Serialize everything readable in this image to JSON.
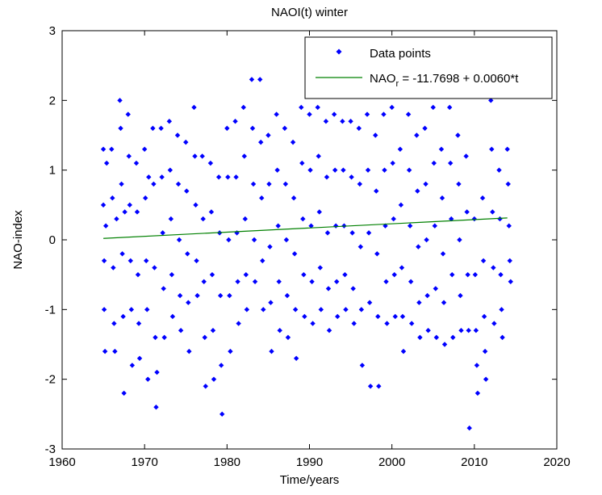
{
  "chart_data": {
    "type": "scatter",
    "title": "NAOI(t) winter",
    "xlabel": "Time/years",
    "ylabel": "NAO-index",
    "xlim": [
      1960,
      2020
    ],
    "ylim": [
      -3,
      3
    ],
    "xticks": [
      1960,
      1970,
      1980,
      1990,
      2000,
      2010,
      2020
    ],
    "yticks": [
      -3,
      -2,
      -1,
      0,
      1,
      2,
      3
    ],
    "grid": false,
    "legend": {
      "position": "top-right",
      "entries": [
        {
          "label": "Data points",
          "marker": "diamond",
          "color": "#0000ff"
        },
        {
          "label_main": "NAO",
          "label_sub": "r",
          "label_rest": " = -11.7698 + 0.0060*t",
          "line": true,
          "color": "#008000"
        }
      ]
    },
    "series": [
      {
        "name": "Data points",
        "color": "#0000ff",
        "points": [
          [
            1965.0,
            1.3
          ],
          [
            1965.0,
            0.5
          ],
          [
            1965.1,
            -0.3
          ],
          [
            1965.1,
            -1.0
          ],
          [
            1965.2,
            -1.6
          ],
          [
            1965.3,
            0.2
          ],
          [
            1965.4,
            1.1
          ],
          [
            1966.0,
            1.3
          ],
          [
            1966.1,
            0.6
          ],
          [
            1966.2,
            -0.4
          ],
          [
            1966.3,
            -1.2
          ],
          [
            1966.4,
            -1.6
          ],
          [
            1966.6,
            0.3
          ],
          [
            1967.0,
            2.0
          ],
          [
            1967.1,
            1.6
          ],
          [
            1967.2,
            0.8
          ],
          [
            1967.3,
            -0.2
          ],
          [
            1967.4,
            -1.1
          ],
          [
            1967.5,
            -2.2
          ],
          [
            1967.6,
            0.4
          ],
          [
            1968.0,
            1.8
          ],
          [
            1968.1,
            1.2
          ],
          [
            1968.2,
            0.5
          ],
          [
            1968.3,
            -0.3
          ],
          [
            1968.4,
            -1.0
          ],
          [
            1968.5,
            -1.8
          ],
          [
            1969.0,
            1.1
          ],
          [
            1969.1,
            0.4
          ],
          [
            1969.2,
            -0.5
          ],
          [
            1969.3,
            -1.2
          ],
          [
            1969.4,
            -1.7
          ],
          [
            1970.0,
            1.3
          ],
          [
            1970.1,
            0.6
          ],
          [
            1970.2,
            -0.3
          ],
          [
            1970.3,
            -1.0
          ],
          [
            1970.4,
            -2.0
          ],
          [
            1970.5,
            0.9
          ],
          [
            1971.0,
            1.6
          ],
          [
            1971.1,
            0.8
          ],
          [
            1971.2,
            -0.4
          ],
          [
            1971.3,
            -1.4
          ],
          [
            1971.4,
            -2.4
          ],
          [
            1971.5,
            -1.9
          ],
          [
            1972.0,
            1.6
          ],
          [
            1972.1,
            0.9
          ],
          [
            1972.2,
            0.1
          ],
          [
            1972.3,
            -0.7
          ],
          [
            1972.4,
            -1.4
          ],
          [
            1973.0,
            1.7
          ],
          [
            1973.1,
            1.0
          ],
          [
            1973.2,
            0.3
          ],
          [
            1973.3,
            -0.5
          ],
          [
            1973.4,
            -1.1
          ],
          [
            1974.0,
            1.5
          ],
          [
            1974.1,
            0.8
          ],
          [
            1974.2,
            0.0
          ],
          [
            1974.3,
            -0.8
          ],
          [
            1974.4,
            -1.3
          ],
          [
            1975.0,
            1.4
          ],
          [
            1975.1,
            0.7
          ],
          [
            1975.2,
            -0.2
          ],
          [
            1975.3,
            -0.9
          ],
          [
            1975.4,
            -1.6
          ],
          [
            1976.0,
            1.9
          ],
          [
            1976.1,
            1.2
          ],
          [
            1976.2,
            0.5
          ],
          [
            1976.3,
            -0.3
          ],
          [
            1976.4,
            -0.8
          ],
          [
            1977.0,
            1.2
          ],
          [
            1977.1,
            0.3
          ],
          [
            1977.2,
            -0.6
          ],
          [
            1977.3,
            -1.4
          ],
          [
            1977.4,
            -2.1
          ],
          [
            1978.0,
            1.1
          ],
          [
            1978.1,
            0.4
          ],
          [
            1978.2,
            -0.5
          ],
          [
            1978.3,
            -1.3
          ],
          [
            1978.4,
            -2.0
          ],
          [
            1979.0,
            0.9
          ],
          [
            1979.1,
            0.1
          ],
          [
            1979.2,
            -0.8
          ],
          [
            1979.3,
            -1.8
          ],
          [
            1979.4,
            -2.5
          ],
          [
            1980.0,
            1.6
          ],
          [
            1980.1,
            0.9
          ],
          [
            1980.2,
            0.0
          ],
          [
            1980.3,
            -0.8
          ],
          [
            1980.4,
            -1.6
          ],
          [
            1981.0,
            1.7
          ],
          [
            1981.1,
            0.9
          ],
          [
            1981.2,
            0.1
          ],
          [
            1981.3,
            -0.6
          ],
          [
            1981.4,
            -1.2
          ],
          [
            1982.0,
            1.9
          ],
          [
            1982.1,
            1.2
          ],
          [
            1982.2,
            0.3
          ],
          [
            1982.3,
            -0.5
          ],
          [
            1982.4,
            -1.0
          ],
          [
            1983.0,
            2.3
          ],
          [
            1983.1,
            1.6
          ],
          [
            1983.2,
            0.8
          ],
          [
            1983.3,
            0.0
          ],
          [
            1983.4,
            -0.6
          ],
          [
            1984.0,
            2.3
          ],
          [
            1984.1,
            1.4
          ],
          [
            1984.2,
            0.6
          ],
          [
            1984.3,
            -0.3
          ],
          [
            1984.4,
            -1.0
          ],
          [
            1985.0,
            1.5
          ],
          [
            1985.1,
            0.8
          ],
          [
            1985.2,
            -0.1
          ],
          [
            1985.3,
            -0.9
          ],
          [
            1985.4,
            -1.6
          ],
          [
            1986.0,
            1.8
          ],
          [
            1986.1,
            1.0
          ],
          [
            1986.2,
            0.2
          ],
          [
            1986.3,
            -0.6
          ],
          [
            1986.4,
            -1.3
          ],
          [
            1987.0,
            1.6
          ],
          [
            1987.1,
            0.8
          ],
          [
            1987.2,
            0.0
          ],
          [
            1987.3,
            -0.8
          ],
          [
            1987.4,
            -1.4
          ],
          [
            1988.0,
            1.4
          ],
          [
            1988.1,
            0.6
          ],
          [
            1988.2,
            -0.2
          ],
          [
            1988.3,
            -1.0
          ],
          [
            1988.4,
            -1.7
          ],
          [
            1989.0,
            1.9
          ],
          [
            1989.1,
            1.1
          ],
          [
            1989.2,
            0.3
          ],
          [
            1989.3,
            -0.5
          ],
          [
            1989.4,
            -1.1
          ],
          [
            1990.0,
            1.8
          ],
          [
            1990.1,
            1.0
          ],
          [
            1990.2,
            0.2
          ],
          [
            1990.3,
            -0.6
          ],
          [
            1990.4,
            -1.2
          ],
          [
            1991.0,
            1.9
          ],
          [
            1991.1,
            1.2
          ],
          [
            1991.2,
            0.4
          ],
          [
            1991.3,
            -0.4
          ],
          [
            1991.4,
            -1.0
          ],
          [
            1992.0,
            1.7
          ],
          [
            1992.1,
            0.9
          ],
          [
            1992.2,
            0.1
          ],
          [
            1992.3,
            -0.7
          ],
          [
            1992.4,
            -1.3
          ],
          [
            1993.0,
            1.8
          ],
          [
            1993.1,
            1.0
          ],
          [
            1993.2,
            0.2
          ],
          [
            1993.3,
            -0.6
          ],
          [
            1993.4,
            -1.1
          ],
          [
            1994.0,
            1.7
          ],
          [
            1994.1,
            1.0
          ],
          [
            1994.2,
            0.2
          ],
          [
            1994.3,
            -0.5
          ],
          [
            1994.4,
            -1.0
          ],
          [
            1995.0,
            1.7
          ],
          [
            1995.1,
            0.9
          ],
          [
            1995.2,
            0.1
          ],
          [
            1995.3,
            -0.7
          ],
          [
            1995.4,
            -1.2
          ],
          [
            1996.0,
            1.6
          ],
          [
            1996.1,
            0.8
          ],
          [
            1996.2,
            -0.1
          ],
          [
            1996.3,
            -1.0
          ],
          [
            1996.4,
            -1.8
          ],
          [
            1997.0,
            1.8
          ],
          [
            1997.1,
            1.0
          ],
          [
            1997.2,
            0.1
          ],
          [
            1997.3,
            -0.9
          ],
          [
            1997.4,
            -2.1
          ],
          [
            1998.0,
            1.5
          ],
          [
            1998.1,
            0.7
          ],
          [
            1998.2,
            -0.2
          ],
          [
            1998.3,
            -1.1
          ],
          [
            1998.4,
            -2.1
          ],
          [
            1999.0,
            1.8
          ],
          [
            1999.1,
            1.0
          ],
          [
            1999.2,
            0.2
          ],
          [
            1999.3,
            -0.6
          ],
          [
            1999.4,
            -1.2
          ],
          [
            2000.0,
            1.9
          ],
          [
            2000.1,
            1.1
          ],
          [
            2000.2,
            0.3
          ],
          [
            2000.3,
            -0.5
          ],
          [
            2000.4,
            -1.1
          ],
          [
            2001.0,
            1.3
          ],
          [
            2001.1,
            0.5
          ],
          [
            2001.2,
            -0.4
          ],
          [
            2001.3,
            -1.1
          ],
          [
            2001.4,
            -1.6
          ],
          [
            2002.0,
            1.8
          ],
          [
            2002.1,
            1.0
          ],
          [
            2002.2,
            0.2
          ],
          [
            2002.3,
            -0.6
          ],
          [
            2002.4,
            -1.2
          ],
          [
            2003.0,
            1.5
          ],
          [
            2003.1,
            0.7
          ],
          [
            2003.2,
            -0.1
          ],
          [
            2003.3,
            -0.9
          ],
          [
            2003.4,
            -1.4
          ],
          [
            2004.0,
            1.6
          ],
          [
            2004.1,
            0.8
          ],
          [
            2004.2,
            0.0
          ],
          [
            2004.3,
            -0.8
          ],
          [
            2004.4,
            -1.3
          ],
          [
            2005.0,
            1.9
          ],
          [
            2005.1,
            1.1
          ],
          [
            2005.2,
            0.2
          ],
          [
            2005.3,
            -0.7
          ],
          [
            2005.4,
            -1.4
          ],
          [
            2006.0,
            1.3
          ],
          [
            2006.1,
            0.6
          ],
          [
            2006.2,
            -0.2
          ],
          [
            2006.3,
            -0.9
          ],
          [
            2006.4,
            -1.5
          ],
          [
            2007.0,
            1.9
          ],
          [
            2007.1,
            1.1
          ],
          [
            2007.2,
            0.3
          ],
          [
            2007.3,
            -0.5
          ],
          [
            2007.4,
            -1.4
          ],
          [
            2008.0,
            1.5
          ],
          [
            2008.1,
            0.8
          ],
          [
            2008.2,
            0.0
          ],
          [
            2008.3,
            -0.8
          ],
          [
            2008.4,
            -1.3
          ],
          [
            2009.0,
            1.2
          ],
          [
            2009.1,
            0.4
          ],
          [
            2009.2,
            -0.5
          ],
          [
            2009.3,
            -1.3
          ],
          [
            2009.4,
            -2.7
          ],
          [
            2010.0,
            0.3
          ],
          [
            2010.1,
            -0.5
          ],
          [
            2010.2,
            -1.3
          ],
          [
            2010.3,
            -1.8
          ],
          [
            2010.4,
            -2.2
          ],
          [
            2011.0,
            0.6
          ],
          [
            2011.1,
            -0.3
          ],
          [
            2011.2,
            -1.1
          ],
          [
            2011.3,
            -1.6
          ],
          [
            2011.4,
            -2.0
          ],
          [
            2012.0,
            2.0
          ],
          [
            2012.1,
            1.3
          ],
          [
            2012.2,
            0.4
          ],
          [
            2012.3,
            -0.4
          ],
          [
            2012.4,
            -1.2
          ],
          [
            2013.0,
            1.0
          ],
          [
            2013.1,
            0.3
          ],
          [
            2013.2,
            -0.5
          ],
          [
            2013.3,
            -1.0
          ],
          [
            2013.4,
            -1.4
          ],
          [
            2014.0,
            1.3
          ],
          [
            2014.1,
            0.8
          ],
          [
            2014.2,
            0.2
          ],
          [
            2014.3,
            -0.3
          ],
          [
            2014.4,
            -0.6
          ]
        ]
      },
      {
        "name": "NAOr = -11.7698 + 0.0060*t",
        "type": "line",
        "color": "#008000",
        "intercept": -11.7698,
        "slope": 0.006,
        "x_range": [
          1965,
          2014
        ]
      }
    ]
  }
}
